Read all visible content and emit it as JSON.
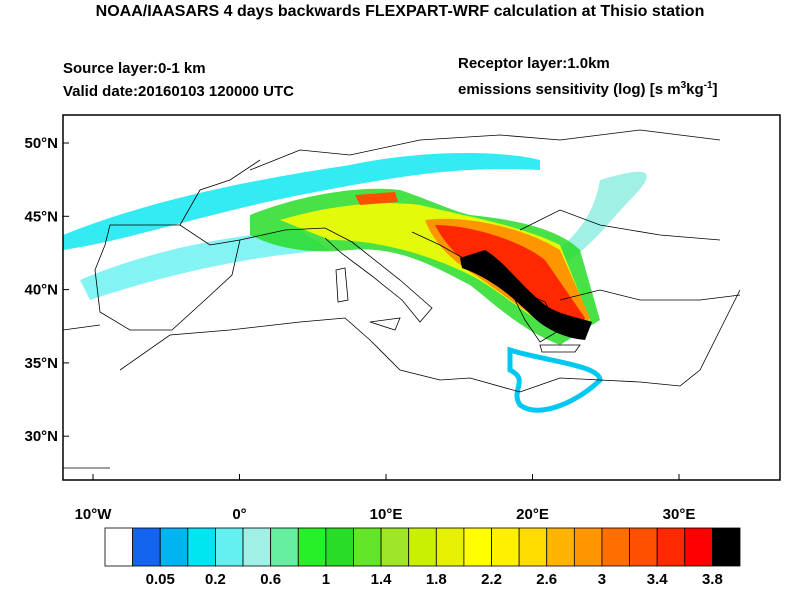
{
  "title": "NOAA/IAASARS 4 days backwards FLEXPART-WRF calculation at Thisio station",
  "source_layer": "Source layer:0-1 km",
  "valid_date": "Valid date:20160103 120000 UTC",
  "receptor_layer": "Receptor layer:1.0km",
  "units": {
    "text": "emissions sensitivity (log) [s m",
    "sup1": "3",
    "mid": "kg",
    "sup2": "-1",
    "end": "]"
  },
  "map": {
    "lat_labels": [
      "50°N",
      "45°N",
      "40°N",
      "35°N",
      "30°N"
    ],
    "lon_labels": [
      "10°W",
      "0°",
      "10°E",
      "20°E",
      "30°E"
    ]
  },
  "colorbar": {
    "colors": [
      "#ffffff",
      "#1464f0",
      "#00b4f0",
      "#00e6f0",
      "#64f0f0",
      "#a0f0e6",
      "#64f0a0",
      "#28f028",
      "#28dc28",
      "#64e628",
      "#a0e628",
      "#c8f000",
      "#e6f000",
      "#ffff00",
      "#fff000",
      "#ffdc00",
      "#ffb400",
      "#ff9600",
      "#ff6e00",
      "#ff5000",
      "#ff2800",
      "#ff0000",
      "#000000"
    ],
    "labels": [
      "0.05",
      "0.2",
      "0.6",
      "1",
      "1.4",
      "1.8",
      "2.2",
      "2.6",
      "3",
      "3.4",
      "3.8"
    ]
  }
}
